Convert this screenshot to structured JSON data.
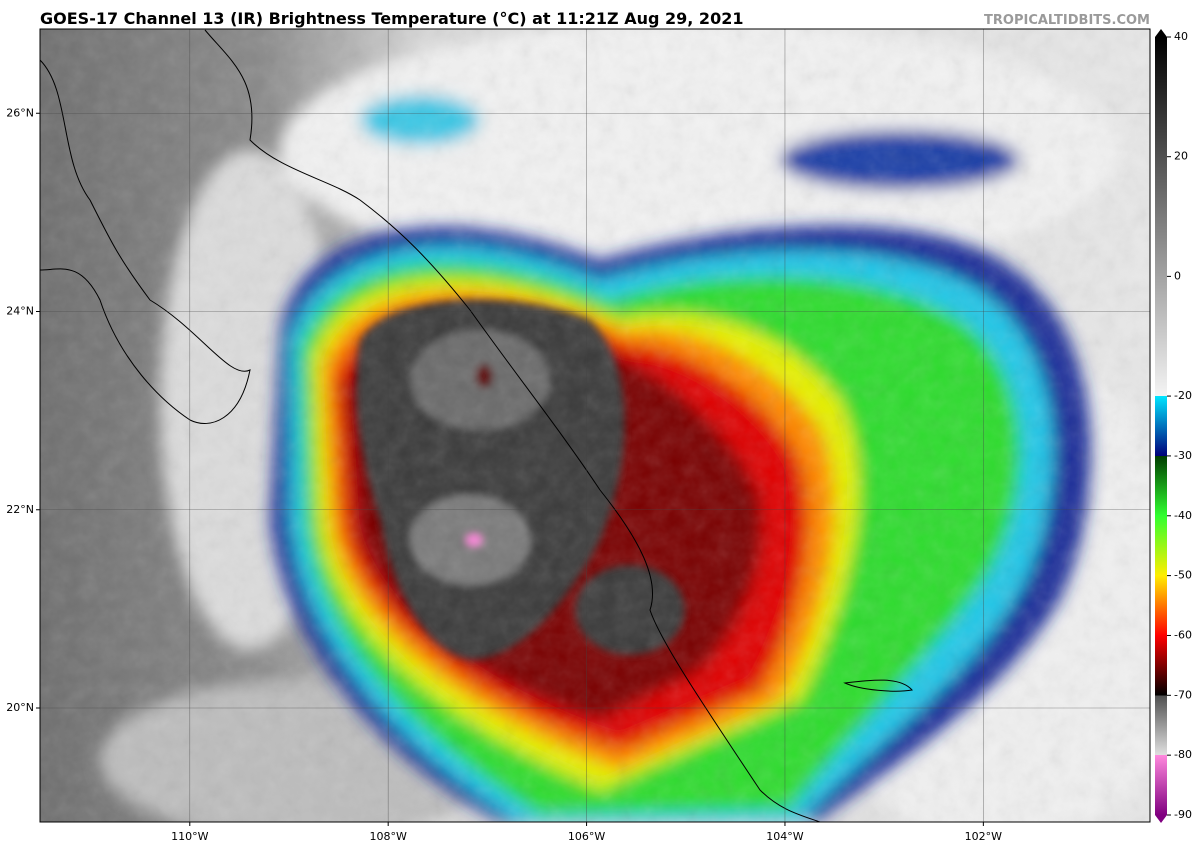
{
  "header": {
    "title": "GOES-17 Channel 13 (IR) Brightness Temperature (°C) at 11:21Z Aug 29, 2021",
    "credit": "TROPICALTIDBITS.COM"
  },
  "map": {
    "lonlim": [
      -111.51,
      -100.32
    ],
    "latlim": [
      18.85,
      26.85
    ],
    "lon_ticks": [
      {
        "value": -110,
        "label": "110°W"
      },
      {
        "value": -108,
        "label": "108°W"
      },
      {
        "value": -106,
        "label": "106°W"
      },
      {
        "value": -104,
        "label": "104°W"
      },
      {
        "value": -102,
        "label": "102°W"
      }
    ],
    "lat_ticks": [
      {
        "value": 26,
        "label": "26°N"
      },
      {
        "value": 24,
        "label": "24°N"
      },
      {
        "value": 22,
        "label": "22°N"
      },
      {
        "value": 20,
        "label": "20°N"
      }
    ]
  },
  "colorbar": {
    "lim": [
      -90,
      40
    ],
    "ticks": [
      40,
      20,
      0,
      -20,
      -30,
      -40,
      -50,
      -60,
      -70,
      -80,
      -90
    ]
  }
}
